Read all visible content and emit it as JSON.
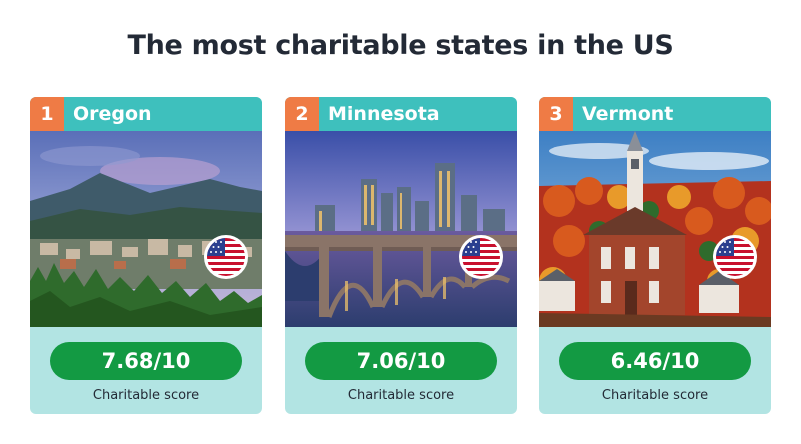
{
  "title": "The most charitable states in the US",
  "colors": {
    "title": "#232a36",
    "card_bg": "#b2e4e3",
    "header_bg": "#3ec0bd",
    "rank_bg": "#ef7b45",
    "score_bg": "#139a43"
  },
  "cards": [
    {
      "rank": "1",
      "state": "Oregon",
      "score": "7.68/10",
      "score_label": "Charitable score",
      "photo_icon": "oregon-landscape-photo",
      "flag_icon": "us-flag-icon"
    },
    {
      "rank": "2",
      "state": "Minnesota",
      "score": "7.06/10",
      "score_label": "Charitable score",
      "photo_icon": "minneapolis-skyline-photo",
      "flag_icon": "us-flag-icon"
    },
    {
      "rank": "3",
      "state": "Vermont",
      "score": "6.46/10",
      "score_label": "Charitable score",
      "photo_icon": "vermont-church-photo",
      "flag_icon": "us-flag-icon"
    }
  ]
}
